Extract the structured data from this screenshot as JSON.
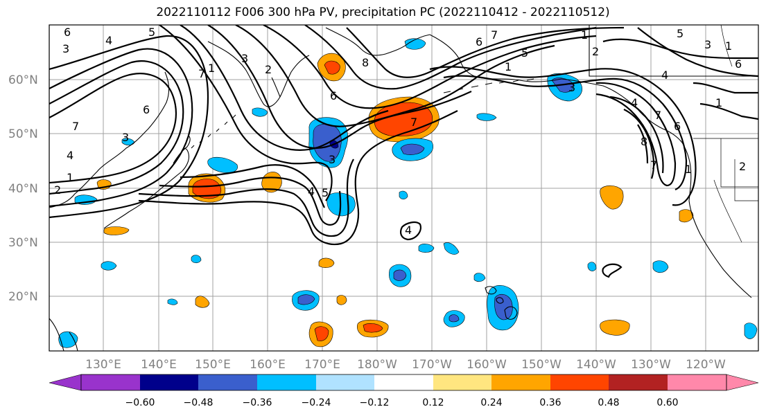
{
  "title": "2022110112 F006 300 hPa PV, precipitation PC (2022110412 - 2022110512)",
  "lat_labels": [
    "60°N",
    "50°N",
    "40°N",
    "30°N",
    "20°N"
  ],
  "lon_labels": [
    "130°E",
    "140°E",
    "150°E",
    "160°E",
    "170°E",
    "180°W",
    "170°W",
    "160°W",
    "150°W",
    "140°W",
    "130°W",
    "120°W"
  ],
  "colorbar": {
    "colors": [
      "#9933cc",
      "#00008b",
      "#3a5fcd",
      "#00bfff",
      "#b0e2ff",
      "#ffffff",
      "#ffe680",
      "#ffa500",
      "#ff4500",
      "#b22222",
      "#ff88aa"
    ],
    "tick_labels": [
      "−0.60",
      "−0.48",
      "−0.36",
      "−0.24",
      "−0.12",
      "0.12",
      "0.24",
      "0.36",
      "0.48",
      "0.60"
    ]
  },
  "contour_labels": [
    "6",
    "5",
    "3",
    "4",
    "7",
    "1",
    "2",
    "3",
    "1",
    "7",
    "6",
    "4",
    "3",
    "8",
    "6",
    "3",
    "2",
    "4",
    "5",
    "7",
    "4",
    "5",
    "7",
    "1",
    "3",
    "6",
    "1",
    "7",
    "5",
    "4",
    "2",
    "1",
    "6",
    "4",
    "8",
    "3",
    "7",
    "6",
    "1",
    "2",
    "1"
  ]
}
